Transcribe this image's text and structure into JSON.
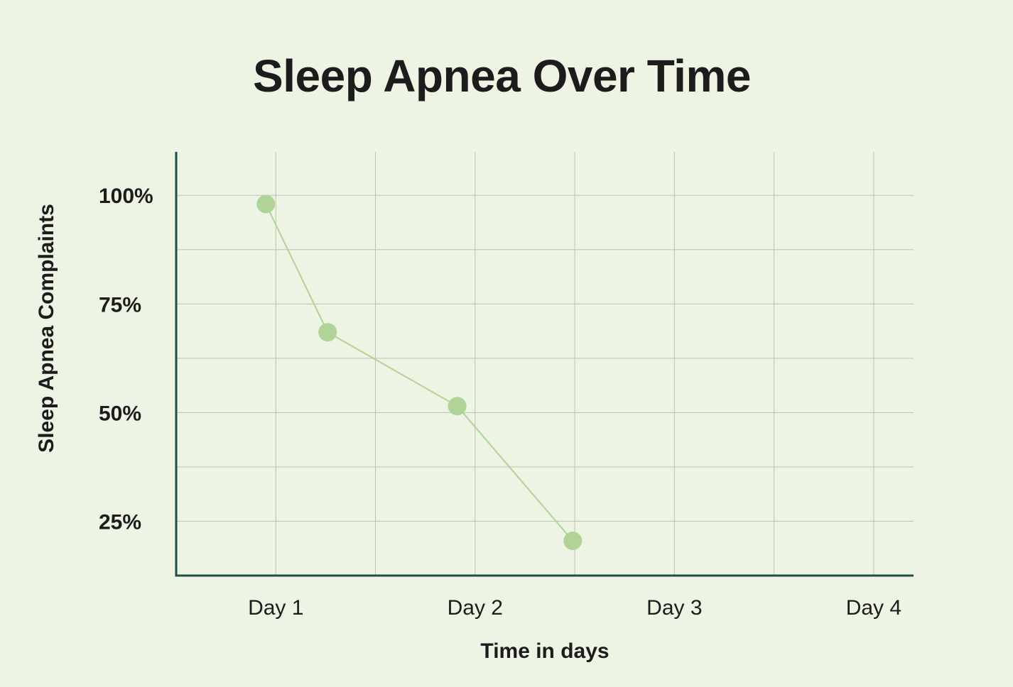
{
  "colors": {
    "background": "#eef4e4",
    "axis": "#1f4f4a",
    "grid": "#b9c3b2",
    "line": "#b0d497",
    "marker": "#b0d497",
    "text": "#1c1c1c"
  },
  "chart_data": {
    "type": "line",
    "title": "Sleep Apnea Over Time",
    "xlabel": "Time in days",
    "ylabel": "Sleep Apnea Complaints",
    "x_ticks": [
      {
        "value": 1,
        "label": "Day 1"
      },
      {
        "value": 2,
        "label": "Day 2"
      },
      {
        "value": 3,
        "label": "Day 3"
      },
      {
        "value": 4,
        "label": "Day 4"
      }
    ],
    "y_ticks": [
      {
        "value": 25,
        "label": "25%"
      },
      {
        "value": 50,
        "label": "50%"
      },
      {
        "value": 75,
        "label": "75%"
      },
      {
        "value": 100,
        "label": "100%"
      }
    ],
    "xlim": [
      0.5,
      4.2
    ],
    "ylim": [
      12.5,
      110
    ],
    "grid": true,
    "x_minor_step": 0.5,
    "y_minor_step": 12.5,
    "series": [
      {
        "points": [
          {
            "x": 0.95,
            "y": 98
          },
          {
            "x": 1.26,
            "y": 68.5
          },
          {
            "x": 1.91,
            "y": 51.5
          },
          {
            "x": 2.49,
            "y": 20.5
          }
        ]
      }
    ]
  }
}
